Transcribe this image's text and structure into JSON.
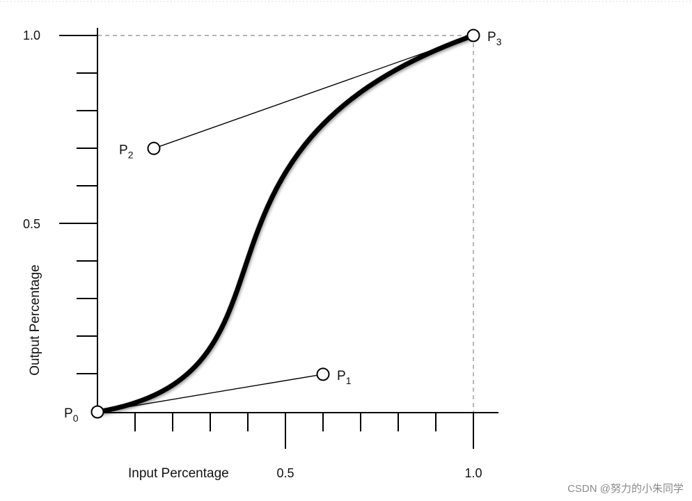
{
  "diagram": {
    "x_axis_label": "Input Percentage",
    "y_axis_label": "Output Percentage",
    "x_tick_labels": [
      "0.5",
      "1.0"
    ],
    "y_tick_labels": [
      "1.0",
      "0.5"
    ],
    "points": [
      {
        "name": "P",
        "sub": "0",
        "x": 0.0,
        "y": 0.0
      },
      {
        "name": "P",
        "sub": "1",
        "x": 0.6,
        "y": 0.1
      },
      {
        "name": "P",
        "sub": "2",
        "x": 0.15,
        "y": 0.7
      },
      {
        "name": "P",
        "sub": "3",
        "x": 1.0,
        "y": 1.0
      }
    ],
    "axis_range": {
      "x": [
        0,
        1
      ],
      "y": [
        0,
        1
      ]
    },
    "curve": "cubic-bezier",
    "colors": {
      "curve": "#000000",
      "axis": "#000000",
      "guide": "#888888",
      "handle": "#000000"
    }
  },
  "watermark": "CSDN @努力的小朱同学"
}
